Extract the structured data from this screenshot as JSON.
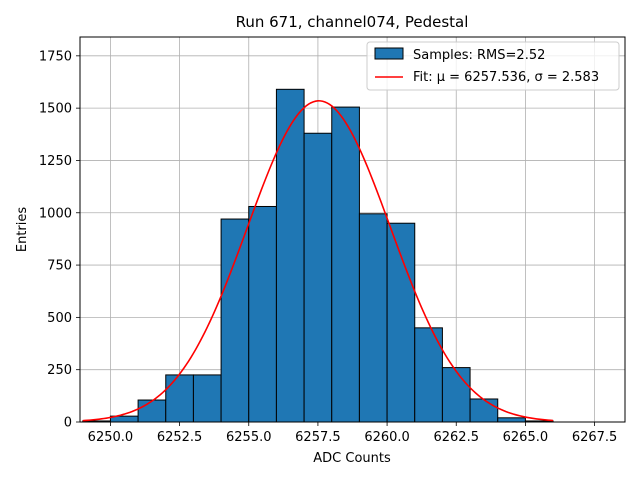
{
  "chart_data": {
    "type": "bar",
    "title": "Run 671, channel074, Pedestal",
    "xlabel": "ADC Counts",
    "ylabel": "Entries",
    "xlim": [
      6248.9,
      6268.6
    ],
    "ylim": [
      0,
      1840
    ],
    "x_ticks": [
      6250.0,
      6252.5,
      6255.0,
      6257.5,
      6260.0,
      6262.5,
      6265.0,
      6267.5
    ],
    "x_tick_labels": [
      "6250.0",
      "6252.5",
      "6255.0",
      "6257.5",
      "6260.0",
      "6262.5",
      "6265.0",
      "6267.5"
    ],
    "y_ticks": [
      0,
      250,
      500,
      750,
      1000,
      1250,
      1500,
      1750
    ],
    "y_tick_labels": [
      "0",
      "250",
      "500",
      "750",
      "1000",
      "1250",
      "1500",
      "1750"
    ],
    "grid": true,
    "legend_position": "top-right",
    "bin_edges": [
      6249,
      6250,
      6251,
      6252,
      6253,
      6254,
      6255,
      6256,
      6257,
      6258,
      6259,
      6260,
      6261,
      6262,
      6263,
      6264,
      6265,
      6266
    ],
    "series": [
      {
        "name": "Samples: RMS=2.52",
        "kind": "histogram",
        "color": "#1f77b4",
        "edgecolor": "#000000",
        "values": [
          5,
          28,
          105,
          225,
          225,
          970,
          1030,
          1590,
          1380,
          1505,
          995,
          950,
          450,
          260,
          110,
          20,
          5
        ]
      },
      {
        "name": "Fit: μ = 6257.536, σ = 2.583",
        "kind": "gaussian",
        "color": "#ff0000",
        "mu": 6257.536,
        "sigma": 2.583,
        "amplitude": 1535,
        "x_range": [
          6249,
          6266
        ]
      }
    ]
  }
}
